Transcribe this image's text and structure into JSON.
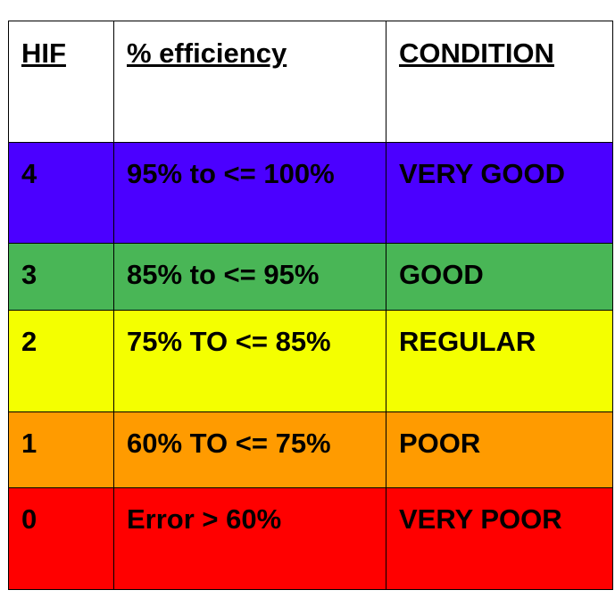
{
  "table": {
    "headers": [
      "HIF",
      "% efficiency",
      "CONDITION"
    ],
    "rows": [
      {
        "hif": "4",
        "efficiency": "95% to <= 100%",
        "condition": "VERY GOOD",
        "color": "#4b00ff"
      },
      {
        "hif": "3",
        "efficiency": "85% to <= 95%",
        "condition": "GOOD",
        "color": "#49b656"
      },
      {
        "hif": "2",
        "efficiency": "75% TO <= 85%",
        "condition": "REGULAR",
        "color": "#f4ff00"
      },
      {
        "hif": "1",
        "efficiency": "60% TO <= 75%",
        "condition": "POOR",
        "color": "#ff9b00"
      },
      {
        "hif": "0",
        "efficiency": "Error > 60%",
        "condition": "VERY POOR",
        "color": "#ff0000"
      }
    ]
  }
}
